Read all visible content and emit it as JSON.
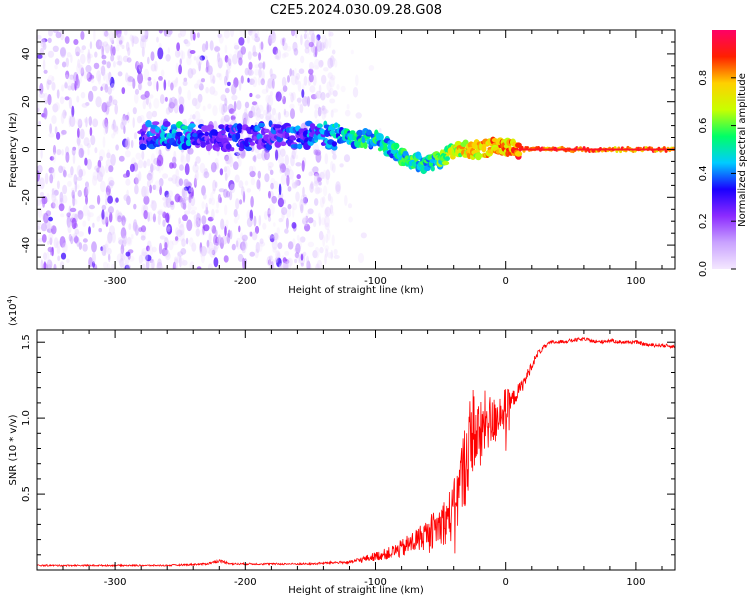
{
  "figure_title": "C2E5.2024.030.09.28.G08",
  "chart_data": [
    {
      "type": "heatmap",
      "title": "C2E5.2024.030.09.28.G08",
      "xlabel": "Height of straight line (km)",
      "ylabel": "Frequency (Hz)",
      "xlim": [
        -360,
        130
      ],
      "ylim": [
        -50,
        50
      ],
      "xticks": [
        -300,
        -200,
        -100,
        0,
        100
      ],
      "yticks": [
        -40,
        -20,
        0,
        20,
        40
      ],
      "xtick_labels": [
        "-300",
        "-200",
        "-100",
        "0",
        "100"
      ],
      "ytick_labels": [
        "-40",
        "-20",
        "0",
        "20",
        "40"
      ],
      "colorbar": {
        "label": "Normalized spectral amplitude",
        "range": [
          0.0,
          1.0
        ],
        "ticks": [
          0.0,
          0.2,
          0.4,
          0.6,
          0.8
        ],
        "tick_labels": [
          "0.0",
          "0.2",
          "0.4",
          "0.6",
          "0.8"
        ],
        "colormap": [
          "#f4e8ff",
          "#c9a2ff",
          "#8c2bff",
          "#1a00ff",
          "#00ccff",
          "#00ff66",
          "#c8ff00",
          "#ffd000",
          "#ff2000",
          "#ff0066"
        ]
      },
      "ridge": {
        "x": [
          -280,
          -250,
          -230,
          -200,
          -180,
          -140,
          -120,
          -100,
          -90,
          -80,
          -70,
          -60,
          -50,
          -40,
          -30,
          -20,
          -10,
          0,
          10,
          130
        ],
        "y": [
          6,
          6,
          5,
          5,
          6,
          6,
          5,
          4,
          1,
          -3,
          -5,
          -6,
          -4,
          -1,
          0,
          0,
          1,
          1,
          0,
          0
        ],
        "amplitude": [
          0.4,
          0.55,
          0.35,
          0.45,
          0.4,
          0.5,
          0.6,
          0.6,
          0.6,
          0.6,
          0.65,
          0.6,
          0.65,
          0.8,
          0.85,
          0.85,
          0.9,
          0.9,
          0.95,
          0.95
        ]
      },
      "noise_region_x": [
        -360,
        -130
      ]
    },
    {
      "type": "line",
      "xlabel": "Height of straight line (km)",
      "ylabel": "SNR (10 * v/v)",
      "multiplier_label": "(x10",
      "multiplier_exponent": "4",
      "multiplier_close": ")",
      "xlim": [
        -360,
        130
      ],
      "ylim": [
        0,
        1.58
      ],
      "xticks": [
        -300,
        -200,
        -100,
        0,
        100
      ],
      "yticks": [
        0.5,
        1.0,
        1.5
      ],
      "xtick_labels": [
        "-300",
        "-200",
        "-100",
        "0",
        "100"
      ],
      "ytick_labels": [
        "0.5",
        "1.0",
        "1.5"
      ],
      "color": "#ff0000",
      "series": [
        {
          "name": "SNR",
          "x": [
            -360,
            -340,
            -300,
            -260,
            -230,
            -220,
            -210,
            -180,
            -150,
            -130,
            -120,
            -110,
            -100,
            -90,
            -80,
            -70,
            -60,
            -50,
            -40,
            -35,
            -30,
            -25,
            -20,
            -15,
            -10,
            -5,
            0,
            5,
            10,
            15,
            20,
            25,
            30,
            35,
            40,
            50,
            60,
            70,
            80,
            90,
            100,
            110,
            120,
            130
          ],
          "y": [
            0.03,
            0.03,
            0.03,
            0.03,
            0.04,
            0.06,
            0.04,
            0.04,
            0.04,
            0.05,
            0.05,
            0.07,
            0.09,
            0.11,
            0.14,
            0.19,
            0.24,
            0.3,
            0.38,
            0.55,
            0.75,
            0.95,
            0.85,
            1.0,
            0.95,
            1.05,
            1.05,
            1.12,
            1.18,
            1.25,
            1.35,
            1.43,
            1.47,
            1.5,
            1.5,
            1.51,
            1.52,
            1.5,
            1.51,
            1.5,
            1.5,
            1.48,
            1.48,
            1.47
          ],
          "noise_amplitude": [
            0.005,
            0.005,
            0.005,
            0.005,
            0.006,
            0.01,
            0.006,
            0.006,
            0.006,
            0.008,
            0.01,
            0.02,
            0.03,
            0.04,
            0.06,
            0.08,
            0.1,
            0.14,
            0.2,
            0.25,
            0.3,
            0.3,
            0.25,
            0.2,
            0.18,
            0.15,
            0.15,
            0.06,
            0.05,
            0.04,
            0.03,
            0.02,
            0.015,
            0.012,
            0.012,
            0.012,
            0.012,
            0.012,
            0.012,
            0.012,
            0.012,
            0.012,
            0.012,
            0.012
          ]
        }
      ]
    }
  ]
}
